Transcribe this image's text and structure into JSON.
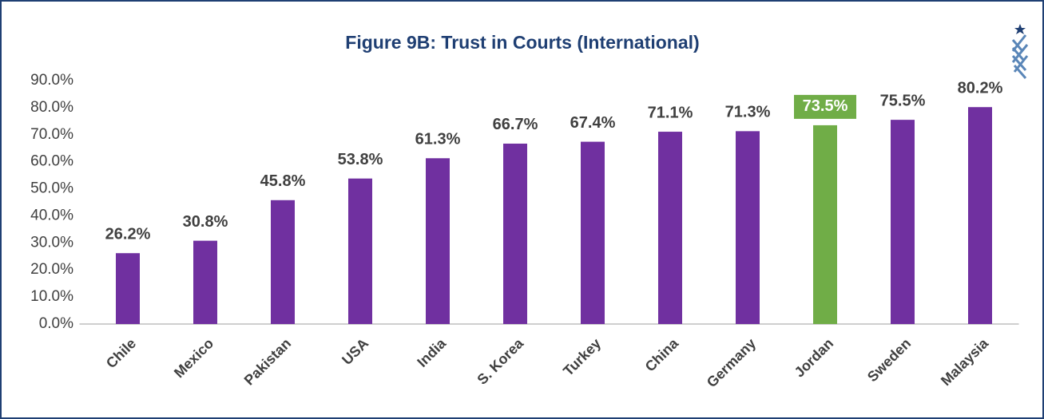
{
  "chart_data": {
    "type": "bar",
    "title": "Figure 9B: Trust in Courts (International)",
    "categories": [
      "Chile",
      "Mexico",
      "Pakistan",
      "USA",
      "India",
      "S. Korea",
      "Turkey",
      "China",
      "Germany",
      "Jordan",
      "Sweden",
      "Malaysia"
    ],
    "values": [
      26.2,
      30.8,
      45.8,
      53.8,
      61.3,
      66.7,
      67.4,
      71.1,
      71.3,
      73.5,
      75.5,
      80.2
    ],
    "value_labels": [
      "26.2%",
      "30.8%",
      "45.8%",
      "53.8%",
      "61.3%",
      "66.7%",
      "67.4%",
      "71.1%",
      "71.3%",
      "73.5%",
      "75.5%",
      "80.2%"
    ],
    "colors": [
      "#7030a0",
      "#7030a0",
      "#7030a0",
      "#7030a0",
      "#7030a0",
      "#7030a0",
      "#7030a0",
      "#7030a0",
      "#7030a0",
      "#70ad47",
      "#7030a0",
      "#7030a0"
    ],
    "ylim": [
      0,
      90
    ],
    "yticks": [
      {
        "value": 0,
        "label": "0.0%"
      },
      {
        "value": 10,
        "label": "10.0%"
      },
      {
        "value": 20,
        "label": "20.0%"
      },
      {
        "value": 30,
        "label": "30.0%"
      },
      {
        "value": 40,
        "label": "40.0%"
      },
      {
        "value": 50,
        "label": "50.0%"
      },
      {
        "value": 60,
        "label": "60.0%"
      },
      {
        "value": 70,
        "label": "70.0%"
      },
      {
        "value": 80,
        "label": "80.0%"
      },
      {
        "value": 90,
        "label": "90.0%"
      }
    ],
    "grid": false
  }
}
